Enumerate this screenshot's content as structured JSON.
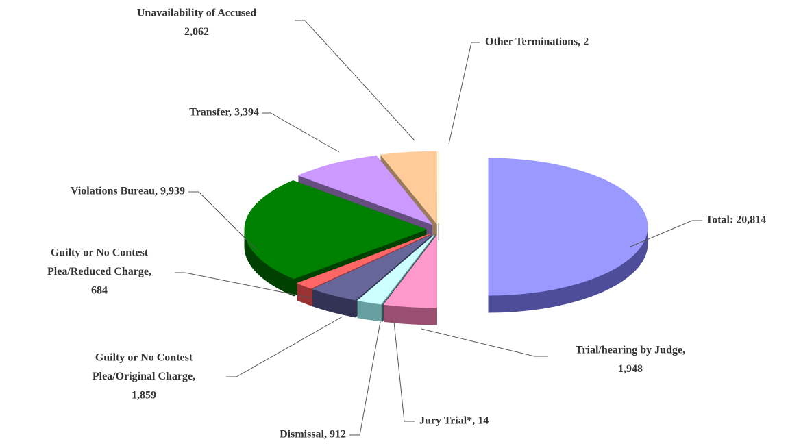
{
  "chart_data": {
    "type": "pie3d",
    "values": [
      20814,
      1948,
      14,
      912,
      1859,
      684,
      9939,
      3394,
      2062,
      2
    ],
    "value_labels": [
      [
        "Total: 20,814"
      ],
      [
        "Trial/hearing by Judge,",
        "1,948"
      ],
      [
        "Jury Trial*, 14"
      ],
      [
        "Dismissal, 912"
      ],
      [
        "Guilty or No Contest",
        "Plea/Original Charge,",
        "1,859"
      ],
      [
        "Guilty or No Contest",
        "Plea/Reduced Charge,",
        "684"
      ],
      [
        "Violations Bureau, 9,939"
      ],
      [
        "Transfer, 3,394"
      ],
      [
        "Unavailability of Accused",
        "2,062"
      ],
      [
        "Other Terminations, 2"
      ]
    ],
    "colors": [
      "#9999ff",
      "#ff99cc",
      "#669999",
      "#ccffff",
      "#666699",
      "#ff6666",
      "#008000",
      "#cc99ff",
      "#ffcc99",
      "#ffffcc"
    ],
    "side_colors": [
      "#4d4d99",
      "#995070",
      "#335050",
      "#66a0a0",
      "#333355",
      "#993333",
      "#004000",
      "#664d80",
      "#997a5c",
      "#99997a"
    ]
  }
}
